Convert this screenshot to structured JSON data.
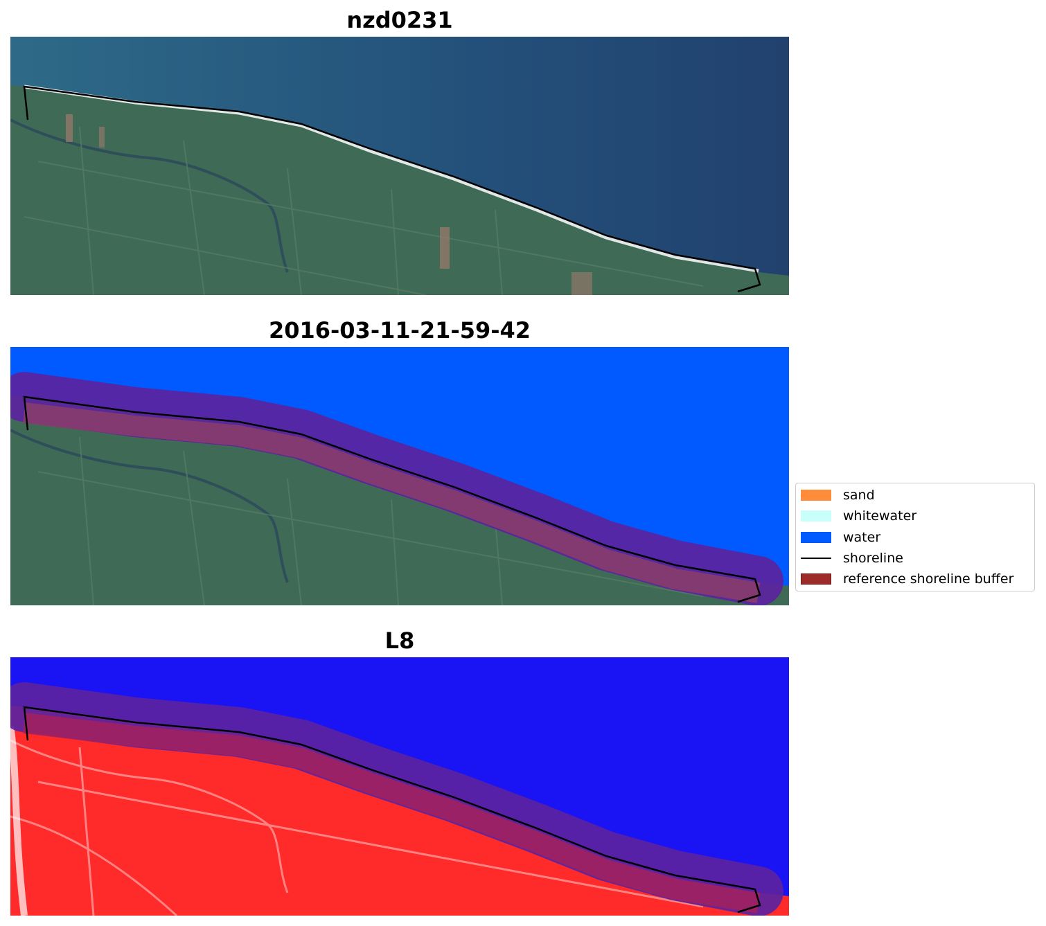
{
  "panels": [
    {
      "title": "nzd0231",
      "layer": "rgb"
    },
    {
      "title": "2016-03-11-21-59-42",
      "layer": "classification"
    },
    {
      "title": "L8",
      "layer": "index"
    }
  ],
  "legend": {
    "items": [
      {
        "label": "sand",
        "color": "#ff8c3a",
        "kind": "patch"
      },
      {
        "label": "whitewater",
        "color": "#c8fffa",
        "kind": "patch"
      },
      {
        "label": "water",
        "color": "#005aff",
        "kind": "patch"
      },
      {
        "label": "shoreline",
        "color": "#000000",
        "kind": "line"
      },
      {
        "label": "reference shoreline buffer",
        "color": "#9e2a2a",
        "kind": "patch"
      }
    ]
  },
  "colors": {
    "ocean_rgb": "#2a5c7e",
    "ocean_deep": "#22416e",
    "land_rgb": "#3f6a55",
    "water_class": "#005aff",
    "buffer": "#5b23a0",
    "buffer_land": "#8a3d6a",
    "index_water": "#1a14f5",
    "index_land": "#ff2a2a"
  }
}
